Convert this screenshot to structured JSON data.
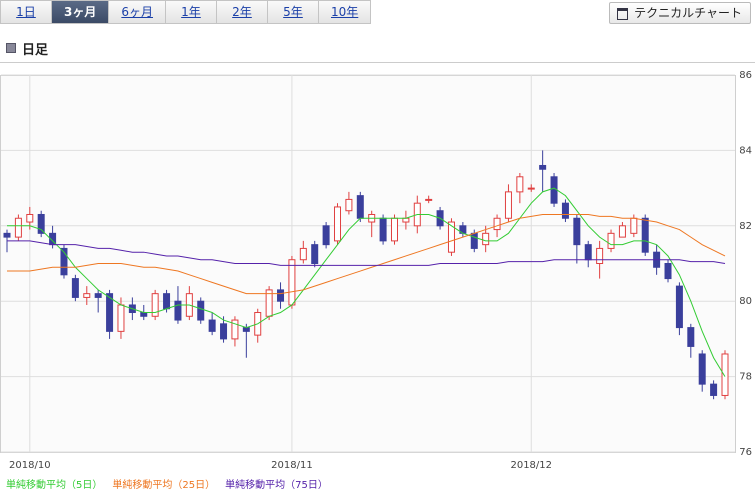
{
  "tabs": [
    "1日",
    "3ヶ月",
    "6ヶ月",
    "1年",
    "2年",
    "5年",
    "10年"
  ],
  "selected_tab": 1,
  "button": "テクニカルチャート",
  "section_title": "日足",
  "chart_data": {
    "type": "candlestick",
    "up_color": "#e04040",
    "down_color": "#3a3f9c",
    "categories": [
      null,
      null,
      "2018/10",
      null,
      null,
      null,
      null,
      null,
      null,
      null,
      null,
      null,
      null,
      null,
      null,
      null,
      null,
      null,
      null,
      null,
      null,
      null,
      null,
      null,
      null,
      "2018/11",
      null,
      null,
      null,
      null,
      null,
      null,
      null,
      null,
      null,
      null,
      null,
      null,
      null,
      null,
      null,
      null,
      null,
      null,
      null,
      null,
      "2018/12",
      null,
      null,
      null,
      null,
      null,
      null,
      null,
      null,
      null,
      null,
      null,
      null,
      null,
      null,
      null,
      null,
      null
    ],
    "open": [
      81.8,
      81.7,
      82.1,
      82.3,
      81.8,
      81.4,
      80.6,
      80.1,
      80.2,
      80.2,
      79.2,
      79.9,
      79.7,
      79.6,
      80.2,
      80.0,
      79.6,
      80.0,
      79.5,
      79.4,
      79.0,
      79.3,
      79.1,
      79.6,
      80.3,
      79.9,
      81.1,
      81.5,
      82.0,
      81.6,
      82.4,
      82.8,
      82.1,
      82.2,
      81.6,
      82.1,
      82.0,
      82.7,
      82.4,
      81.3,
      82.0,
      81.8,
      81.5,
      81.9,
      82.2,
      82.9,
      83.0,
      83.6,
      83.3,
      82.6,
      82.2,
      81.5,
      81.0,
      81.4,
      81.7,
      81.8,
      82.2,
      81.3,
      81.0,
      80.4,
      79.3,
      78.6,
      77.8,
      77.5
    ],
    "high": [
      81.9,
      82.3,
      82.5,
      82.4,
      82.0,
      81.5,
      80.7,
      80.4,
      80.3,
      80.3,
      80.1,
      80.1,
      79.9,
      80.3,
      80.3,
      80.4,
      80.4,
      80.1,
      79.7,
      79.6,
      79.6,
      79.4,
      79.8,
      80.4,
      80.5,
      81.2,
      81.6,
      81.6,
      82.1,
      82.6,
      82.9,
      82.9,
      82.4,
      82.3,
      82.3,
      82.4,
      82.8,
      82.8,
      82.5,
      82.2,
      82.1,
      81.9,
      82.0,
      82.3,
      83.1,
      83.4,
      83.1,
      84.0,
      83.4,
      82.7,
      82.3,
      81.6,
      81.6,
      81.9,
      82.1,
      82.3,
      82.3,
      81.5,
      81.1,
      80.5,
      79.4,
      78.7,
      77.9,
      78.7
    ],
    "low": [
      81.3,
      81.6,
      81.9,
      81.7,
      81.4,
      80.6,
      80.0,
      79.9,
      79.7,
      79.0,
      79.0,
      79.5,
      79.5,
      79.5,
      79.7,
      79.4,
      79.5,
      79.4,
      79.1,
      78.9,
      78.8,
      78.5,
      78.9,
      79.5,
      79.8,
      79.8,
      81.0,
      80.9,
      81.4,
      81.5,
      82.3,
      82.1,
      81.7,
      81.5,
      81.5,
      81.9,
      81.8,
      82.6,
      81.9,
      81.2,
      81.7,
      81.3,
      81.3,
      81.7,
      82.1,
      82.6,
      82.9,
      82.9,
      82.5,
      82.1,
      81.0,
      80.9,
      80.6,
      81.3,
      81.7,
      81.7,
      81.2,
      80.7,
      80.5,
      79.1,
      78.5,
      77.6,
      77.4,
      77.4
    ],
    "close": [
      81.7,
      82.2,
      82.3,
      81.8,
      81.5,
      80.7,
      80.1,
      80.2,
      80.1,
      79.2,
      79.9,
      79.7,
      79.6,
      80.2,
      79.8,
      79.5,
      80.2,
      79.5,
      79.2,
      79.0,
      79.5,
      79.2,
      79.7,
      80.3,
      80.0,
      81.1,
      81.4,
      81.0,
      81.5,
      82.5,
      82.7,
      82.2,
      82.3,
      81.6,
      82.2,
      82.2,
      82.6,
      82.7,
      82.0,
      82.1,
      81.8,
      81.4,
      81.8,
      82.2,
      82.9,
      83.3,
      83.0,
      83.5,
      82.6,
      82.2,
      81.5,
      81.1,
      81.4,
      81.8,
      82.0,
      82.2,
      81.3,
      80.9,
      80.6,
      79.3,
      78.8,
      77.8,
      77.5,
      78.6
    ],
    "series": [
      {
        "name": "単純移動平均（5日）",
        "color": "#33cc33",
        "values": [
          82.0,
          82.0,
          82.0,
          81.9,
          81.6,
          81.3,
          80.9,
          80.6,
          80.3,
          80.1,
          79.9,
          79.8,
          79.7,
          79.7,
          79.8,
          79.9,
          79.9,
          79.8,
          79.7,
          79.5,
          79.4,
          79.3,
          79.4,
          79.6,
          79.7,
          79.9,
          80.3,
          80.7,
          81.1,
          81.5,
          81.9,
          82.2,
          82.2,
          82.2,
          82.2,
          82.2,
          82.3,
          82.3,
          82.2,
          82.0,
          81.8,
          81.7,
          81.6,
          81.6,
          81.8,
          82.2,
          82.6,
          82.9,
          83.0,
          82.8,
          82.4,
          82.0,
          81.7,
          81.5,
          81.5,
          81.6,
          81.6,
          81.5,
          81.2,
          80.7,
          80.0,
          79.2,
          78.5,
          78.0
        ]
      },
      {
        "name": "単純移動平均（25日）",
        "color": "#ee7722",
        "values": [
          80.8,
          80.8,
          80.8,
          80.85,
          80.9,
          80.9,
          80.9,
          80.95,
          81.0,
          81.0,
          81.0,
          80.95,
          80.9,
          80.9,
          80.85,
          80.8,
          80.7,
          80.6,
          80.5,
          80.4,
          80.3,
          80.2,
          80.2,
          80.2,
          80.2,
          80.25,
          80.3,
          80.4,
          80.5,
          80.6,
          80.7,
          80.8,
          80.9,
          81.0,
          81.1,
          81.2,
          81.3,
          81.4,
          81.5,
          81.6,
          81.7,
          81.8,
          81.9,
          82.0,
          82.1,
          82.2,
          82.25,
          82.3,
          82.3,
          82.3,
          82.3,
          82.3,
          82.25,
          82.25,
          82.2,
          82.2,
          82.15,
          82.1,
          82.0,
          81.9,
          81.7,
          81.5,
          81.35,
          81.2
        ]
      },
      {
        "name": "単純移動平均（75日）",
        "color": "#5522aa",
        "values": [
          81.6,
          81.6,
          81.6,
          81.55,
          81.5,
          81.5,
          81.5,
          81.45,
          81.4,
          81.4,
          81.35,
          81.3,
          81.3,
          81.25,
          81.2,
          81.2,
          81.15,
          81.1,
          81.1,
          81.05,
          81.0,
          81.0,
          81.0,
          81.0,
          80.95,
          80.95,
          80.95,
          80.95,
          80.95,
          80.95,
          80.95,
          80.95,
          80.95,
          80.95,
          80.95,
          80.95,
          80.95,
          80.95,
          81.0,
          81.0,
          81.0,
          81.0,
          81.0,
          81.0,
          81.05,
          81.05,
          81.05,
          81.05,
          81.1,
          81.1,
          81.1,
          81.1,
          81.1,
          81.1,
          81.1,
          81.1,
          81.1,
          81.1,
          81.1,
          81.1,
          81.05,
          81.05,
          81.05,
          81.0
        ]
      }
    ],
    "ylim": [
      76,
      86
    ],
    "yticks": [
      76,
      78,
      80,
      82,
      84,
      86
    ],
    "grid": true
  }
}
